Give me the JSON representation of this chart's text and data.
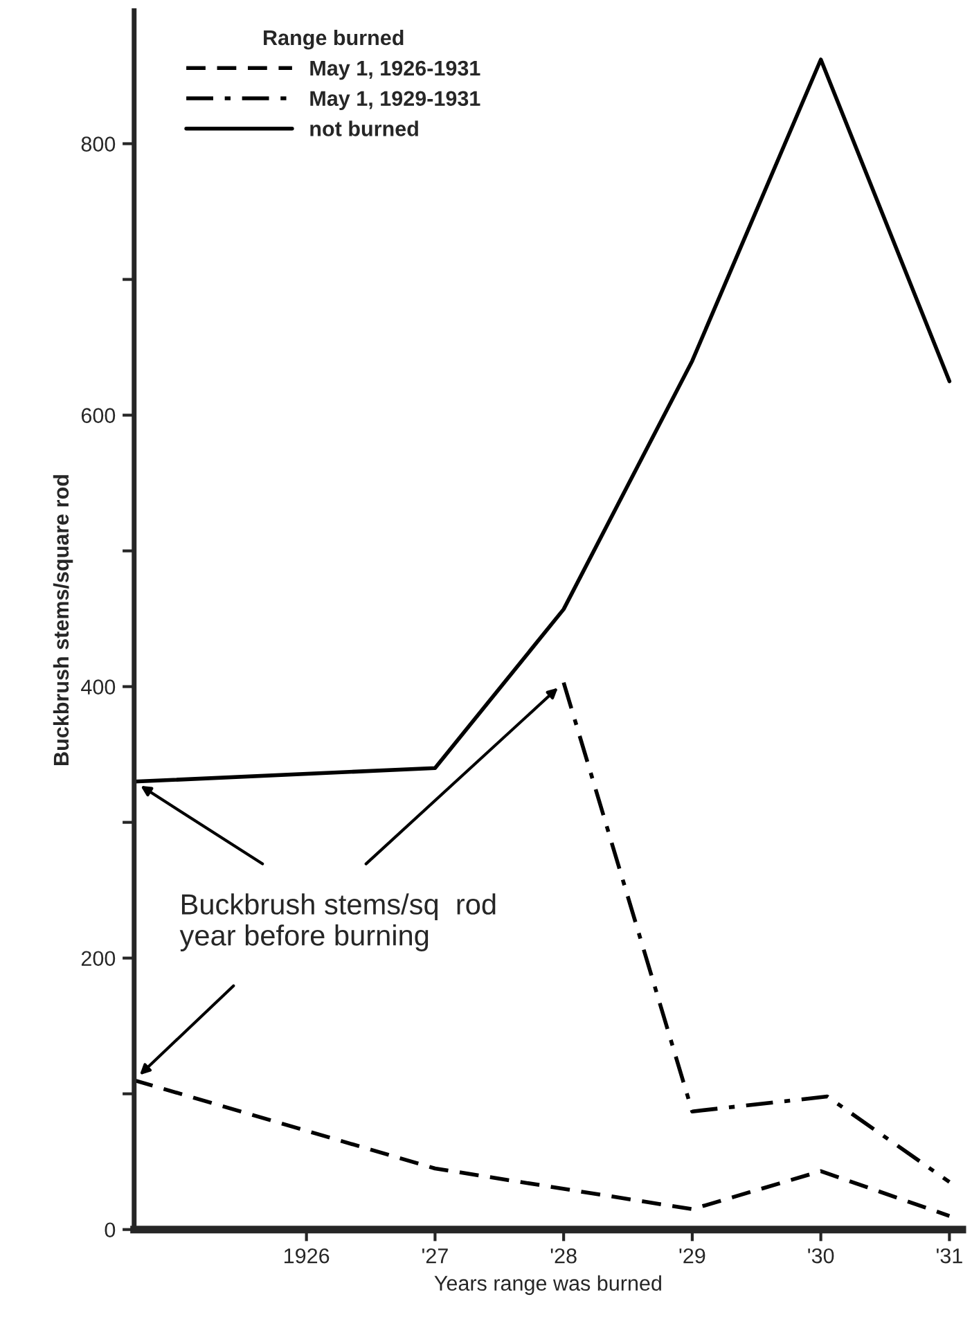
{
  "chart_data": {
    "type": "line",
    "xlabel": "Years range was burned",
    "ylabel": "Buckbrush stems/square rod",
    "legend_title": "Range burned",
    "legend": "top left",
    "grid": false,
    "xlim": [
      1924.66,
      1931.1
    ],
    "xticks": [
      1926,
      {
        "value": 1927,
        "label": "'27"
      },
      {
        "value": 1928,
        "label": "'28"
      },
      {
        "value": 1929,
        "label": "'29"
      },
      {
        "value": 1930,
        "label": "'30"
      },
      {
        "value": 1931,
        "label": "'31"
      }
    ],
    "ylim": [
      0,
      898
    ],
    "yticks": [
      0,
      {
        "value": 100,
        "label": null
      },
      200,
      {
        "value": 300,
        "label": null
      },
      400,
      {
        "value": 500,
        "label": null
      },
      600,
      {
        "value": 700,
        "label": null
      },
      800
    ],
    "series": [
      {
        "name": "May 1, 1926-1931",
        "color": "#000000",
        "line_style": "dashed",
        "x": [
          1924.66,
          1927,
          1929,
          1930,
          1931
        ],
        "values": [
          110,
          45,
          15,
          43,
          10
        ]
      },
      {
        "name": "May 1, 1929-1931",
        "color": "#000000",
        "line_style": "dashdot",
        "x": [
          1928,
          1929,
          1930.05,
          1931
        ],
        "values": [
          403,
          87,
          98,
          35
        ]
      },
      {
        "name": "not burned",
        "color": "#000000",
        "line_style": "solid",
        "x": [
          1924.66,
          1927,
          1928,
          1929,
          1930,
          1931
        ],
        "values": [
          330,
          340,
          457,
          640,
          862,
          625
        ]
      }
    ],
    "annotations": [
      "Buckbrush stems/sq  rod\nyear before burning"
    ]
  }
}
